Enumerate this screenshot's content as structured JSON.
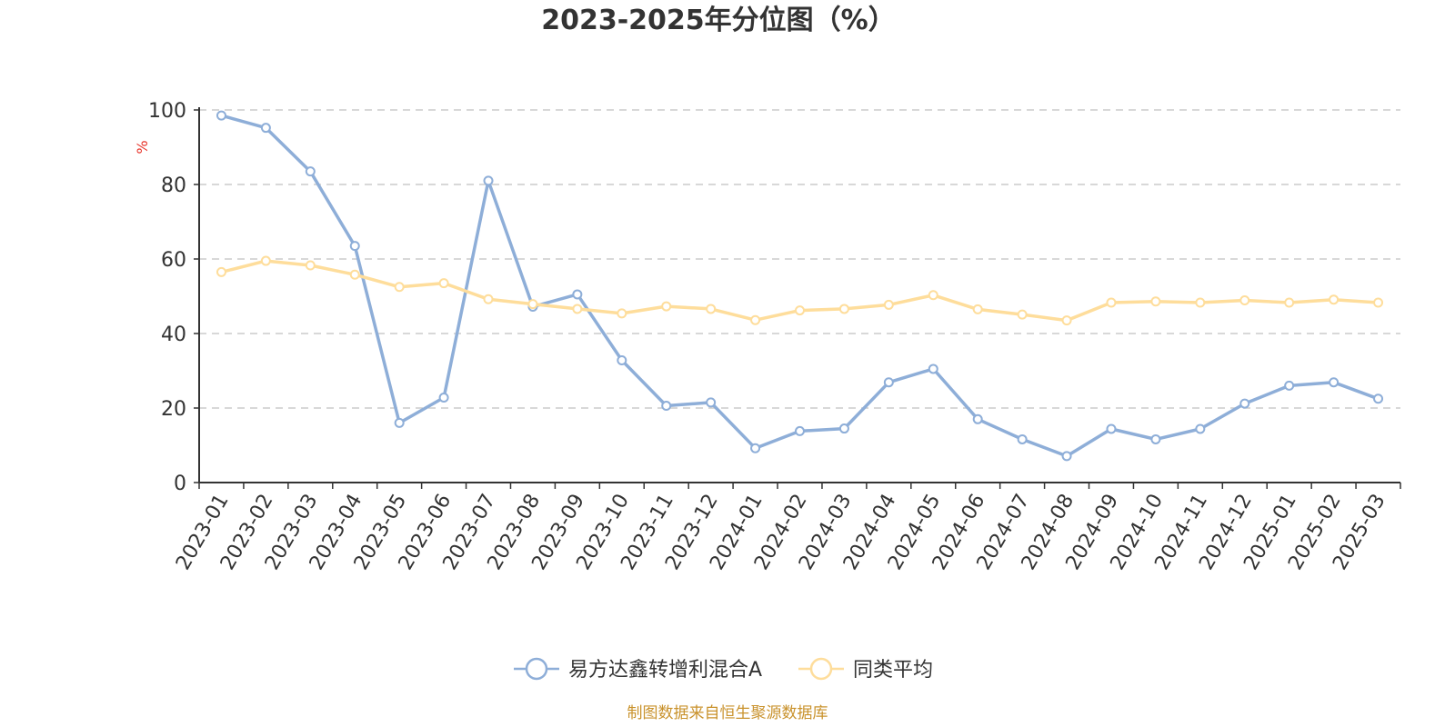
{
  "chart_data": {
    "type": "line",
    "title": "2023-2025年分位图（%）",
    "ylabel": "%",
    "ylim": [
      0,
      100
    ],
    "yticks": [
      0,
      20,
      40,
      60,
      80,
      100
    ],
    "grid": true,
    "legend_position": "bottom",
    "x": [
      "2023-01",
      "2023-02",
      "2023-03",
      "2023-04",
      "2023-05",
      "2023-06",
      "2023-07",
      "2023-08",
      "2023-09",
      "2023-10",
      "2023-11",
      "2023-12",
      "2024-01",
      "2024-02",
      "2024-03",
      "2024-04",
      "2024-05",
      "2024-06",
      "2024-07",
      "2024-08",
      "2024-09",
      "2024-10",
      "2024-11",
      "2024-12",
      "2025-01",
      "2025-02",
      "2025-03"
    ],
    "series": [
      {
        "name": "易方达鑫转增利混合A",
        "color": "#8eaed8",
        "values": [
          98.5,
          95.2,
          83.5,
          63.5,
          16.0,
          22.8,
          81.0,
          47.2,
          50.5,
          32.8,
          20.6,
          21.5,
          9.2,
          13.8,
          14.5,
          26.9,
          30.5,
          17.0,
          11.6,
          7.1,
          14.4,
          11.6,
          14.4,
          21.2,
          26.0,
          26.9,
          22.5
        ]
      },
      {
        "name": "同类平均",
        "color": "#fedd9b",
        "values": [
          56.5,
          59.5,
          58.3,
          55.8,
          52.5,
          53.5,
          49.2,
          47.9,
          46.6,
          45.4,
          47.3,
          46.6,
          43.6,
          46.2,
          46.6,
          47.7,
          50.3,
          46.5,
          45.1,
          43.5,
          48.3,
          48.6,
          48.3,
          48.9,
          48.3,
          49.1,
          48.3
        ]
      }
    ],
    "source": "制图数据来自恒生聚源数据库"
  }
}
